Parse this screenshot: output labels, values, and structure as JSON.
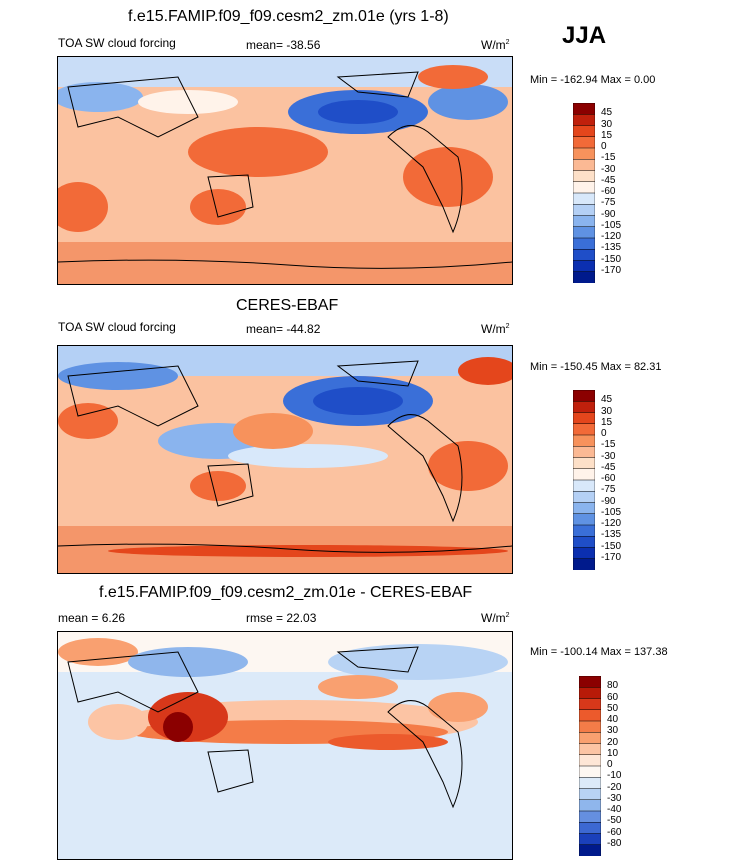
{
  "season": "JJA",
  "panels": [
    {
      "title": "f.e15.FAMIP.f09_f09.cesm2_zm.01e (yrs 1-8)",
      "left_label": "TOA SW cloud forcing",
      "center_label": "mean= -38.56",
      "units": "W/m",
      "units_sup": "2",
      "minmax": "Min = -162.94 Max =   0.00",
      "colorbar_levels": [
        "45",
        "30",
        "15",
        "0",
        "-15",
        "-30",
        "-45",
        "-60",
        "-75",
        "-90",
        "-105",
        "-120",
        "-135",
        "-150",
        "-170"
      ],
      "colorbar_colors": [
        "#8b0000",
        "#c0200c",
        "#e4461c",
        "#f26a38",
        "#f7925c",
        "#fbb994",
        "#fde0c8",
        "#fff3ea",
        "#d8e8fa",
        "#b4d0f5",
        "#8ab4ee",
        "#5f92e3",
        "#3a6fd8",
        "#1f4ec8",
        "#0b2fb0",
        "#001a8c"
      ]
    },
    {
      "title": "CERES-EBAF",
      "left_label": "TOA SW cloud forcing",
      "center_label": "mean= -44.82",
      "units": "W/m",
      "units_sup": "2",
      "minmax": "Min = -150.45 Max =  82.31",
      "colorbar_levels": [
        "45",
        "30",
        "15",
        "0",
        "-15",
        "-30",
        "-45",
        "-60",
        "-75",
        "-90",
        "-105",
        "-120",
        "-135",
        "-150",
        "-170"
      ],
      "colorbar_colors": [
        "#8b0000",
        "#c0200c",
        "#e4461c",
        "#f26a38",
        "#f7925c",
        "#fbb994",
        "#fde0c8",
        "#fff3ea",
        "#d8e8fa",
        "#b4d0f5",
        "#8ab4ee",
        "#5f92e3",
        "#3a6fd8",
        "#1f4ec8",
        "#0b2fb0",
        "#001a8c"
      ]
    },
    {
      "title": "f.e15.FAMIP.f09_f09.cesm2_zm.01e - CERES-EBAF",
      "left_label": "mean =   6.26",
      "center_label": "rmse =  22.03",
      "units": "W/m",
      "units_sup": "2",
      "minmax": "Min = -100.14 Max = 137.38",
      "colorbar_levels": [
        "80",
        "60",
        "50",
        "40",
        "30",
        "20",
        "10",
        "0",
        "-10",
        "-20",
        "-30",
        "-40",
        "-50",
        "-60",
        "-80"
      ],
      "colorbar_colors": [
        "#8b0000",
        "#b81a08",
        "#d8381a",
        "#ec5a2c",
        "#f47c48",
        "#f9a070",
        "#fcc4a4",
        "#fee6d6",
        "#fdf7f2",
        "#dceaf9",
        "#b8d3f4",
        "#8fb6ec",
        "#658fe0",
        "#3c68d2",
        "#1a40bb",
        "#001a8c"
      ]
    }
  ],
  "chart_data": [
    {
      "type": "heatmap",
      "title": "f.e15.FAMIP.f09_f09.cesm2_zm.01e (yrs 1-8)",
      "variable": "TOA SW cloud forcing",
      "season": "JJA",
      "mean": -38.56,
      "min": -162.94,
      "max": 0.0,
      "units": "W/m2",
      "levels": [
        45,
        30,
        15,
        0,
        -15,
        -30,
        -45,
        -60,
        -75,
        -90,
        -105,
        -120,
        -135,
        -150,
        -170
      ]
    },
    {
      "type": "heatmap",
      "title": "CERES-EBAF",
      "variable": "TOA SW cloud forcing",
      "season": "JJA",
      "mean": -44.82,
      "min": -150.45,
      "max": 82.31,
      "units": "W/m2",
      "levels": [
        45,
        30,
        15,
        0,
        -15,
        -30,
        -45,
        -60,
        -75,
        -90,
        -105,
        -120,
        -135,
        -150,
        -170
      ]
    },
    {
      "type": "heatmap",
      "title": "f.e15.FAMIP.f09_f09.cesm2_zm.01e - CERES-EBAF",
      "variable": "TOA SW cloud forcing difference",
      "season": "JJA",
      "mean": 6.26,
      "rmse": 22.03,
      "min": -100.14,
      "max": 137.38,
      "units": "W/m2",
      "levels": [
        80,
        60,
        50,
        40,
        30,
        20,
        10,
        0,
        -10,
        -20,
        -30,
        -40,
        -50,
        -60,
        -80
      ]
    }
  ]
}
